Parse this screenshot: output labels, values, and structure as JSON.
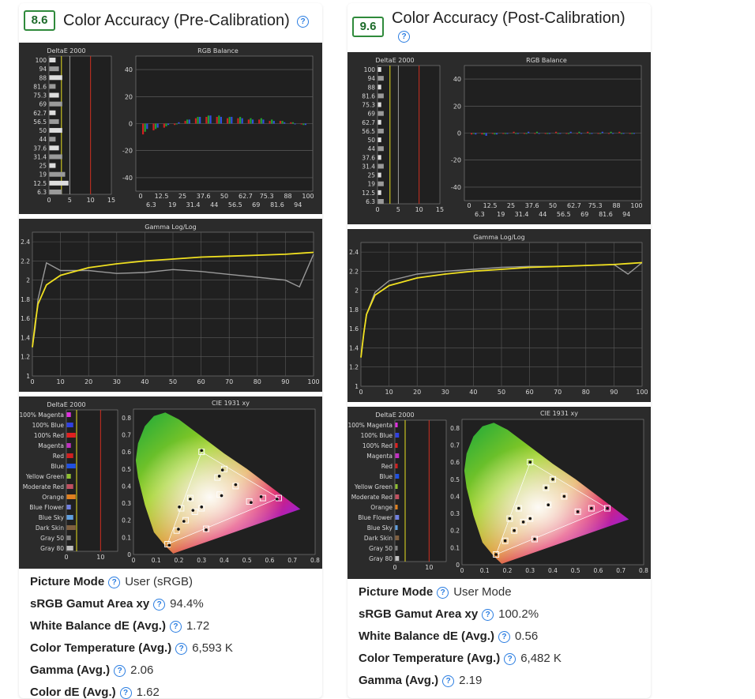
{
  "left": {
    "score": "8.6",
    "title": "Color Accuracy (Pre-Calibration)",
    "deltae_title": "DeltaE 2000",
    "rgb_title": "RGB Balance",
    "gamma_title": "Gamma Log/Log",
    "deltae2_title": "DeltaE 2000",
    "cie_title": "CIE 1931 xy",
    "stats": [
      {
        "label": "Picture Mode",
        "value": "User (sRGB)"
      },
      {
        "label": "sRGB Gamut Area xy",
        "value": "94.4%"
      },
      {
        "label": "White Balance dE (Avg.)",
        "value": "1.72"
      },
      {
        "label": "Color Temperature (Avg.)",
        "value": "6,593 K"
      },
      {
        "label": "Gamma (Avg.)",
        "value": "2.06"
      },
      {
        "label": "Color dE (Avg.)",
        "value": "1.62"
      }
    ]
  },
  "right": {
    "score": "9.6",
    "title": "Color Accuracy (Post-Calibration)",
    "deltae_title": "DeltaE 2000",
    "rgb_title": "RGB Balance",
    "gamma_title": "Gamma Log/Log",
    "deltae2_title": "DeltaE 2000",
    "cie_title": "CIE 1931 xy",
    "stats": [
      {
        "label": "Picture Mode",
        "value": "User Mode"
      },
      {
        "label": "sRGB Gamut Area xy",
        "value": "100.2%"
      },
      {
        "label": "White Balance dE (Avg.)",
        "value": "0.56"
      },
      {
        "label": "Color Temperature (Avg.)",
        "value": "6,482 K"
      },
      {
        "label": "Gamma (Avg.)",
        "value": "2.19"
      }
    ]
  },
  "axes": {
    "grey_levels": [
      "100",
      "94",
      "88",
      "81.6",
      "75.3",
      "69",
      "62.7",
      "56.5",
      "50",
      "44",
      "37.6",
      "31.4",
      "25",
      "19",
      "12.5",
      "6.3"
    ],
    "deltae_x": [
      "0",
      "5",
      "10",
      "15"
    ],
    "rgb_y": [
      "40",
      "20",
      "0",
      "-20",
      "-40"
    ],
    "rgb_x_top": [
      "0",
      "12.5",
      "25",
      "37.6",
      "50",
      "62.7",
      "75.3",
      "88",
      "100"
    ],
    "rgb_x_bottom": [
      "6.3",
      "19",
      "31.4",
      "44",
      "56.5",
      "69",
      "81.6",
      "94"
    ],
    "gamma_y": [
      "2.4",
      "2.2",
      "2",
      "1.8",
      "1.6",
      "1.4",
      "1.2",
      "1"
    ],
    "gamma_x": [
      "0",
      "10",
      "20",
      "30",
      "40",
      "50",
      "60",
      "70",
      "80",
      "90",
      "100"
    ],
    "color_names": [
      "100% Magenta",
      "100% Blue",
      "100% Red",
      "Magenta",
      "Red",
      "Blue",
      "Yellow Green",
      "Moderate Red",
      "Orange",
      "Blue Flower",
      "Blue Sky",
      "Dark Skin",
      "Gray 50",
      "Gray 80"
    ],
    "deltae2_x": [
      "0",
      "10"
    ],
    "cie_y": [
      "0.8",
      "0.7",
      "0.6",
      "0.5",
      "0.4",
      "0.3",
      "0.2",
      "0.1",
      "0"
    ],
    "cie_x": [
      "0",
      "0.1",
      "0.2",
      "0.3",
      "0.4",
      "0.5",
      "0.6",
      "0.7",
      "0.8"
    ]
  },
  "chart_data": [
    {
      "type": "line",
      "title": "Gamma Log/Log",
      "side": "pre-calibration",
      "x": [
        0,
        1,
        2,
        5,
        10,
        20,
        30,
        40,
        50,
        60,
        70,
        80,
        90,
        95,
        100
      ],
      "series": [
        {
          "values": [
            1.3,
            1.5,
            1.8,
            2.18,
            2.1,
            2.1,
            2.07,
            2.08,
            2.11,
            2.09,
            2.06,
            2.03,
            2.0,
            1.93,
            2.27
          ]
        },
        {
          "values": [
            1.3,
            1.55,
            1.75,
            1.95,
            2.05,
            2.13,
            2.17,
            2.2,
            2.22,
            2.24,
            2.25,
            2.26,
            2.27,
            2.28,
            2.29
          ]
        }
      ],
      "ylim": [
        1,
        2.5
      ],
      "xlim": [
        0,
        100
      ]
    },
    {
      "type": "line",
      "title": "Gamma Log/Log",
      "side": "post-calibration",
      "x": [
        0,
        1,
        2,
        5,
        10,
        20,
        30,
        40,
        50,
        60,
        70,
        80,
        90,
        95,
        100
      ],
      "series": [
        {
          "values": [
            1.3,
            1.55,
            1.75,
            1.98,
            2.1,
            2.17,
            2.2,
            2.22,
            2.24,
            2.25,
            2.25,
            2.26,
            2.27,
            2.17,
            2.29
          ]
        },
        {
          "values": [
            1.3,
            1.55,
            1.75,
            1.95,
            2.05,
            2.13,
            2.17,
            2.2,
            2.22,
            2.24,
            2.25,
            2.26,
            2.27,
            2.28,
            2.29
          ]
        }
      ],
      "ylim": [
        1,
        2.5
      ],
      "xlim": [
        0,
        100
      ]
    },
    {
      "type": "bar",
      "title": "RGB Balance",
      "side": "pre-calibration",
      "categories": [
        "6.3",
        "12.5",
        "19",
        "25",
        "31.4",
        "37.6",
        "44",
        "50",
        "56.5",
        "62.7",
        "69",
        "75.3",
        "81.6",
        "88",
        "94",
        "100"
      ],
      "series": [
        {
          "values": [
            -8,
            -5,
            -3,
            -1,
            2,
            4,
            5,
            5,
            4,
            4,
            3,
            3,
            2,
            2,
            1,
            0
          ]
        },
        {
          "values": [
            -6,
            -4,
            -2,
            0,
            3,
            5,
            6,
            6,
            5,
            5,
            4,
            4,
            3,
            2,
            1,
            -1
          ]
        },
        {
          "values": [
            -4,
            -3,
            -1,
            1,
            3,
            5,
            6,
            5,
            5,
            4,
            3,
            3,
            2,
            1,
            0,
            -1
          ]
        }
      ],
      "ylim": [
        -50,
        50
      ]
    },
    {
      "type": "bar",
      "title": "RGB Balance",
      "side": "post-calibration",
      "categories": [
        "6.3",
        "12.5",
        "19",
        "25",
        "31.4",
        "37.6",
        "44",
        "50",
        "56.5",
        "62.7",
        "69",
        "75.3",
        "81.6",
        "88",
        "94",
        "100"
      ],
      "series": [
        {
          "values": [
            -1,
            -1,
            0,
            0,
            1,
            0,
            0,
            0,
            1,
            0,
            0,
            1,
            0,
            0,
            1,
            0
          ]
        },
        {
          "values": [
            0,
            -1,
            -1,
            0,
            0,
            0,
            1,
            0,
            0,
            0,
            1,
            0,
            0,
            1,
            0,
            0
          ]
        },
        {
          "values": [
            -1,
            -2,
            -1,
            0,
            0,
            1,
            0,
            0,
            0,
            1,
            0,
            0,
            1,
            0,
            0,
            0
          ]
        }
      ],
      "ylim": [
        -50,
        50
      ]
    }
  ]
}
